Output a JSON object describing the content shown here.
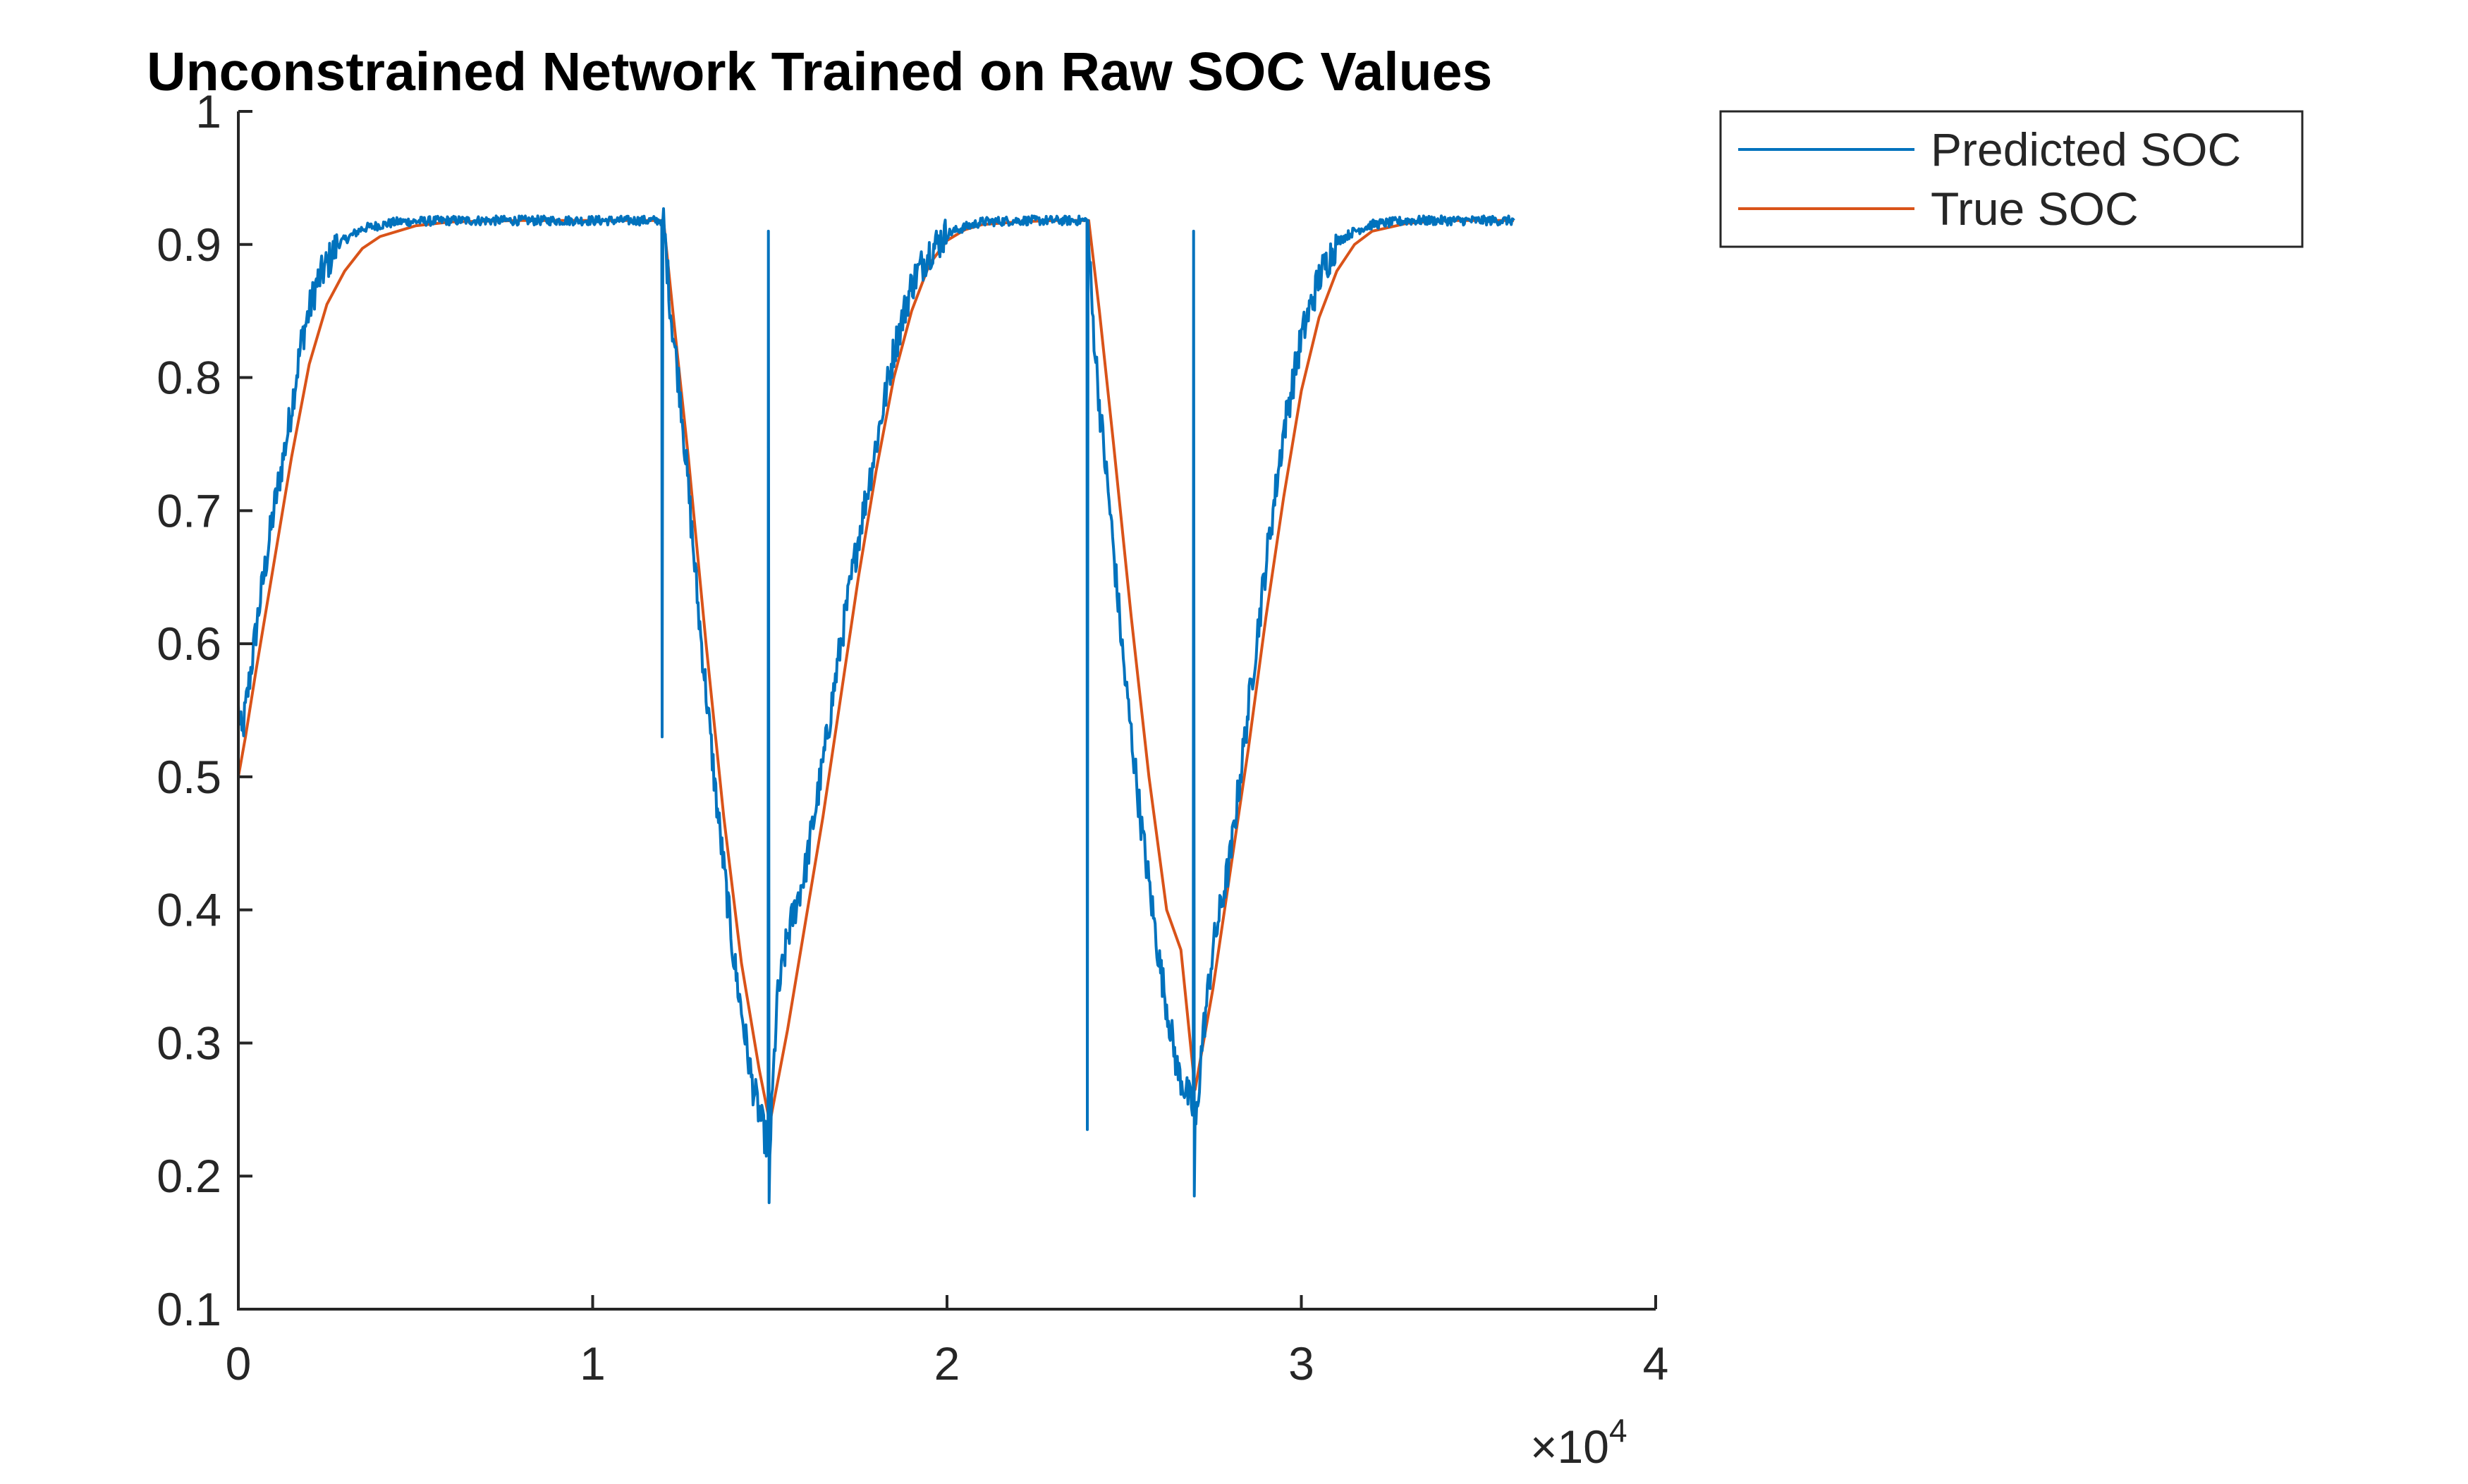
{
  "chart_data": {
    "type": "line",
    "title": "Unconstrained Network Trained on Raw SOC Values",
    "xlabel": "",
    "ylabel": "",
    "xlim": [
      0,
      40000
    ],
    "ylim": [
      0.1,
      1.0
    ],
    "x_ticks": [
      0,
      10000,
      20000,
      30000,
      40000
    ],
    "x_tick_labels": [
      "0",
      "1",
      "2",
      "3",
      "4"
    ],
    "x_exponent_label": "×10",
    "x_exponent_power": "4",
    "y_ticks": [
      0.1,
      0.2,
      0.3,
      0.4,
      0.5,
      0.6,
      0.7,
      0.8,
      0.9,
      1.0
    ],
    "y_tick_labels": [
      "0.1",
      "0.2",
      "0.3",
      "0.4",
      "0.5",
      "0.6",
      "0.7",
      "0.8",
      "0.9",
      "1"
    ],
    "grid": false,
    "legend_position": "outside-top-right",
    "series": [
      {
        "name": "Predicted SOC",
        "color": "#0072BD",
        "noisy": true,
        "x": [
          0,
          100,
          300,
          600,
          1000,
          1400,
          1800,
          2200,
          2800,
          3500,
          4500,
          6000,
          8000,
          10000,
          11950,
          11960,
          11980,
          12000,
          12200,
          12500,
          13000,
          13500,
          14000,
          14500,
          14950,
          14960,
          14980,
          15000,
          15200,
          15500,
          16000,
          16500,
          17000,
          17500,
          18000,
          18500,
          19000,
          19500,
          20000,
          20500,
          21000,
          22000,
          23000,
          23950,
          23960,
          23980,
          24000,
          24100,
          24300,
          24600,
          25000,
          25500,
          26000,
          26500,
          26950,
          26960,
          26980,
          27000,
          27200,
          27500,
          28000,
          28500,
          29000,
          29500,
          30000,
          30500,
          31000,
          31500,
          32000,
          33000,
          34000,
          35000,
          36000
        ],
        "y": [
          0.55,
          0.53,
          0.57,
          0.63,
          0.7,
          0.76,
          0.83,
          0.87,
          0.9,
          0.912,
          0.917,
          0.918,
          0.918,
          0.918,
          0.918,
          0.53,
          0.918,
          0.918,
          0.85,
          0.78,
          0.62,
          0.48,
          0.36,
          0.27,
          0.22,
          0.91,
          0.18,
          0.22,
          0.33,
          0.38,
          0.43,
          0.51,
          0.6,
          0.68,
          0.75,
          0.82,
          0.87,
          0.895,
          0.908,
          0.913,
          0.917,
          0.918,
          0.918,
          0.918,
          0.235,
          0.918,
          0.9,
          0.85,
          0.78,
          0.7,
          0.58,
          0.46,
          0.36,
          0.28,
          0.25,
          0.91,
          0.185,
          0.23,
          0.3,
          0.37,
          0.44,
          0.55,
          0.66,
          0.76,
          0.83,
          0.875,
          0.902,
          0.91,
          0.915,
          0.918,
          0.918,
          0.918,
          0.918
        ]
      },
      {
        "name": "True SOC",
        "color": "#D95319",
        "noisy": false,
        "x": [
          0,
          200,
          500,
          1000,
          1500,
          2000,
          2500,
          3000,
          3500,
          4000,
          5000,
          6000,
          8000,
          10000,
          12000,
          12300,
          12700,
          13200,
          13700,
          14200,
          14700,
          15000,
          15500,
          16000,
          16500,
          17000,
          17500,
          18000,
          18500,
          19000,
          19500,
          20000,
          20500,
          21000,
          22000,
          23000,
          24000,
          24300,
          24700,
          25200,
          25700,
          26200,
          26600,
          27000,
          27500,
          28000,
          28500,
          29000,
          29500,
          30000,
          30500,
          31000,
          31500,
          32000,
          33000,
          34000,
          35000,
          36000
        ],
        "y": [
          0.5,
          0.53,
          0.58,
          0.66,
          0.74,
          0.81,
          0.855,
          0.88,
          0.897,
          0.906,
          0.914,
          0.917,
          0.918,
          0.918,
          0.918,
          0.84,
          0.74,
          0.6,
          0.47,
          0.36,
          0.28,
          0.24,
          0.31,
          0.39,
          0.47,
          0.56,
          0.65,
          0.73,
          0.8,
          0.85,
          0.885,
          0.903,
          0.911,
          0.915,
          0.917,
          0.918,
          0.918,
          0.85,
          0.75,
          0.62,
          0.5,
          0.4,
          0.37,
          0.265,
          0.34,
          0.43,
          0.52,
          0.62,
          0.71,
          0.79,
          0.845,
          0.88,
          0.9,
          0.91,
          0.916,
          0.918,
          0.918,
          0.918
        ]
      }
    ]
  }
}
